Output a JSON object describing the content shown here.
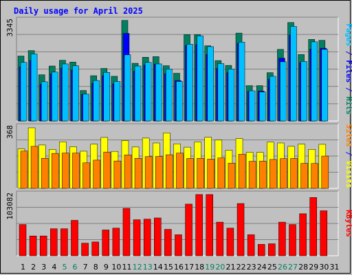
{
  "chart_data": {
    "type": "bar",
    "title": "Daily usage for April 2025",
    "categories": [
      "1",
      "2",
      "3",
      "4",
      "5",
      "6",
      "7",
      "8",
      "9",
      "10",
      "11",
      "12",
      "13",
      "14",
      "15",
      "16",
      "17",
      "18",
      "19",
      "20",
      "21",
      "22",
      "23",
      "24",
      "25",
      "26",
      "27",
      "28",
      "29",
      "30",
      "31"
    ],
    "weekend_days": [
      "5",
      "6",
      "12",
      "13",
      "19",
      "20",
      "26",
      "27"
    ],
    "panels": [
      {
        "id": "top",
        "ymax_label": "3345",
        "ymax": 3345,
        "right_label_parts": [
          {
            "text": "Pages",
            "color": "#00c0ff"
          },
          {
            "text": " / ",
            "color": "#0000ff"
          },
          {
            "text": "Files",
            "color": "#0000ff"
          },
          {
            "text": " / ",
            "color": "#0000ff"
          },
          {
            "text": "Hits",
            "color": "#008060"
          }
        ],
        "series": [
          {
            "name": "Hits",
            "color": "#008060",
            "values": [
              2150,
              2330,
              1530,
              1820,
              2010,
              1950,
              1010,
              1500,
              1740,
              1480,
              3330,
              1910,
              2110,
              2130,
              1830,
              1580,
              2860,
              2860,
              2490,
              2000,
              1840,
              2910,
              1170,
              1170,
              1600,
              2370,
              3260,
              2200,
              2700,
              2670,
              null
            ]
          },
          {
            "name": "Files",
            "color": "#0000ff",
            "values": [
              1790,
              2010,
              1220,
              1560,
              1750,
              1690,
              880,
              1250,
              1500,
              1230,
              2900,
              1650,
              1850,
              1880,
              1570,
              1340,
              2500,
              2530,
              2200,
              1740,
              1600,
              2570,
              980,
              990,
              1380,
              2080,
              2850,
              1930,
              2380,
              2410,
              null
            ]
          },
          {
            "name": "Pages",
            "color": "#00c0ff",
            "values": [
              1940,
              2220,
              1300,
              1620,
              1890,
              1830,
              890,
              1340,
              1610,
              1310,
              2190,
              1820,
              1940,
              1890,
              1720,
              1310,
              2540,
              2820,
              2460,
              1900,
              1720,
              2610,
              1000,
              960,
              1480,
              1960,
              3130,
              1970,
              2620,
              2370,
              null
            ]
          }
        ]
      },
      {
        "id": "middle",
        "ymax_label": "368",
        "ymax": 368,
        "right_label_parts": [
          {
            "text": "Sites",
            "color": "#ff8000"
          },
          {
            "text": " / ",
            "color": "#0000ff"
          },
          {
            "text": "Visits",
            "color": "#ffff00"
          }
        ],
        "series": [
          {
            "name": "Visits",
            "color": "#ffff00",
            "values": [
              235,
              360,
              258,
              232,
              277,
              248,
              221,
              263,
              303,
              220,
              285,
              246,
              299,
              270,
              330,
              265,
              245,
              276,
              304,
              288,
              227,
              296,
              215,
              214,
              275,
              270,
              250,
              263,
              232,
              262,
              null
            ]
          },
          {
            "name": "Sites",
            "color": "#ff8000",
            "values": [
              222,
              250,
              179,
              208,
              210,
              210,
              152,
              168,
              216,
              163,
              199,
              179,
              189,
              190,
              200,
              210,
              178,
              179,
              174,
              181,
              150,
              203,
              161,
              162,
              172,
              177,
              178,
              149,
              148,
              192,
              null
            ]
          }
        ]
      },
      {
        "id": "bottom",
        "ymax_label": "103082",
        "ymax": 103082,
        "right_label_parts": [
          {
            "text": "KBytes",
            "color": "#ff0000"
          }
        ],
        "series": [
          {
            "name": "KBytes",
            "color": "#ff0000",
            "values": [
              52000,
              33000,
              33000,
              45000,
              45000,
              59000,
              21000,
              23000,
              43000,
              46000,
              79000,
              60000,
              61000,
              63000,
              44000,
              35000,
              86000,
              102000,
              102000,
              56000,
              46000,
              87000,
              35000,
              19000,
              20000,
              56000,
              52000,
              70000,
              97000,
              75000,
              null
            ]
          }
        ]
      }
    ],
    "colors": {
      "background": "#c0c0c0",
      "title": "#0000ff",
      "axis_label": "#000000",
      "weekday_label": "#000000",
      "weekend_label": "#008060",
      "grid": "#808080"
    }
  }
}
